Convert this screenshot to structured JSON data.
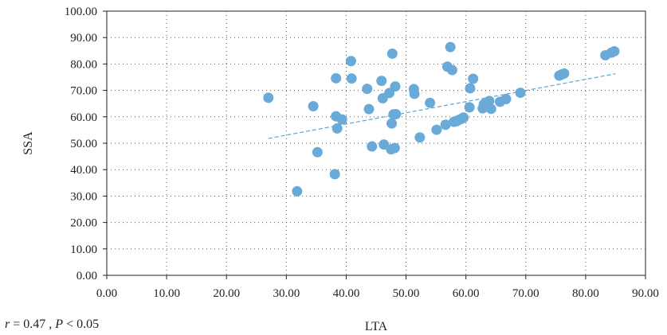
{
  "chart_data": {
    "type": "scatter",
    "title": "",
    "xlabel": "LTA",
    "ylabel": "SSA",
    "xlim": [
      0,
      90
    ],
    "ylim": [
      0,
      100
    ],
    "x_ticks": [
      "0.00",
      "10.00",
      "20.00",
      "30.00",
      "40.00",
      "50.00",
      "60.00",
      "70.00",
      "80.00",
      "90.00"
    ],
    "y_ticks": [
      "0.00",
      "10.00",
      "20.00",
      "30.00",
      "40.00",
      "50.00",
      "60.00",
      "70.00",
      "80.00",
      "90.00",
      "100.00"
    ],
    "grid": "dotted",
    "colors": {
      "points": "#6aaad8",
      "trend": "#5ba3d2"
    },
    "trendline": {
      "x": [
        27,
        85
      ],
      "y": [
        51.8,
        76.3
      ]
    },
    "points": [
      [
        27.0,
        67.2
      ],
      [
        31.8,
        31.8
      ],
      [
        34.5,
        64.0
      ],
      [
        35.2,
        46.6
      ],
      [
        38.1,
        38.3
      ],
      [
        38.3,
        60.2
      ],
      [
        38.3,
        74.6
      ],
      [
        38.5,
        55.6
      ],
      [
        39.3,
        59.0
      ],
      [
        40.8,
        81.1
      ],
      [
        40.9,
        74.5
      ],
      [
        43.5,
        70.6
      ],
      [
        43.8,
        62.9
      ],
      [
        44.3,
        48.8
      ],
      [
        45.9,
        73.6
      ],
      [
        46.1,
        67.0
      ],
      [
        46.3,
        49.5
      ],
      [
        47.2,
        69.0
      ],
      [
        47.5,
        47.7
      ],
      [
        47.6,
        57.5
      ],
      [
        47.7,
        83.9
      ],
      [
        47.9,
        60.9
      ],
      [
        48.1,
        48.2
      ],
      [
        48.2,
        71.5
      ],
      [
        48.3,
        61.0
      ],
      [
        51.3,
        70.5
      ],
      [
        51.4,
        68.7
      ],
      [
        52.3,
        52.2
      ],
      [
        54.0,
        65.3
      ],
      [
        55.1,
        55.1
      ],
      [
        56.6,
        57.0
      ],
      [
        56.9,
        79.0
      ],
      [
        57.4,
        86.4
      ],
      [
        57.7,
        77.7
      ],
      [
        58.0,
        58.1
      ],
      [
        58.4,
        58.3
      ],
      [
        58.8,
        58.8
      ],
      [
        59.3,
        59.3
      ],
      [
        59.6,
        59.7
      ],
      [
        60.6,
        63.6
      ],
      [
        60.7,
        70.8
      ],
      [
        61.2,
        74.4
      ],
      [
        62.8,
        63.2
      ],
      [
        63.0,
        64.8
      ],
      [
        63.5,
        65.2
      ],
      [
        63.9,
        66.0
      ],
      [
        64.2,
        63.0
      ],
      [
        65.7,
        65.7
      ],
      [
        66.7,
        66.7
      ],
      [
        69.1,
        69.1
      ],
      [
        75.6,
        75.6
      ],
      [
        76.0,
        76.0
      ],
      [
        76.4,
        76.4
      ],
      [
        83.3,
        83.3
      ],
      [
        84.3,
        84.3
      ],
      [
        84.8,
        84.8
      ]
    ]
  },
  "stats": {
    "r_symbol": "r",
    "r_value": " = 0.47 , ",
    "p_symbol": "P",
    "p_value": " < 0.05"
  }
}
